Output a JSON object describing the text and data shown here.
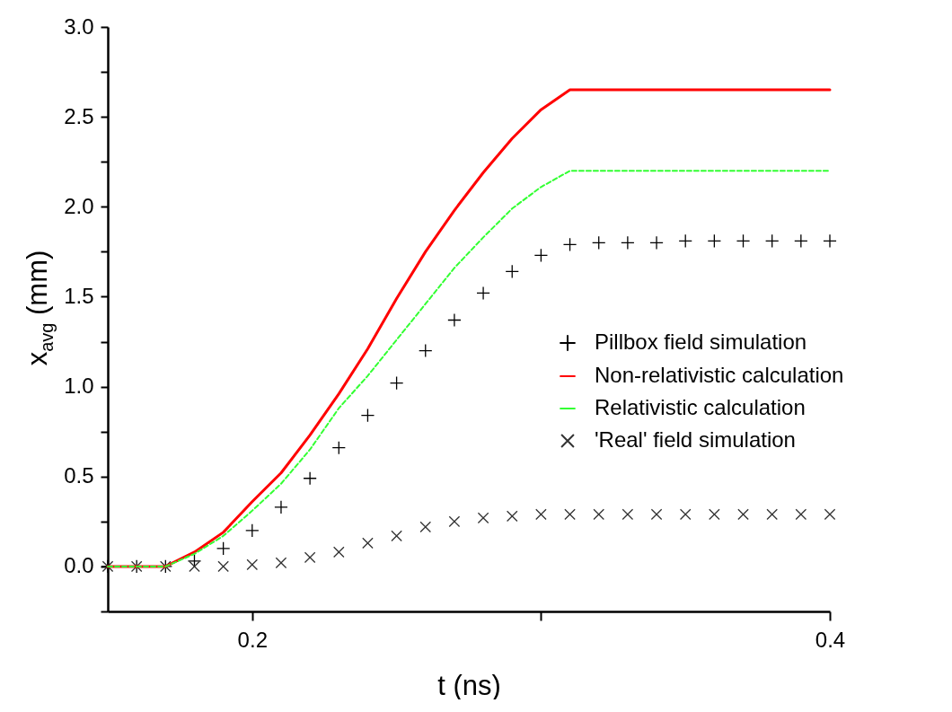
{
  "chart_data": {
    "type": "line",
    "xlabel": "t (ns)",
    "ylabel": "x$_{avg}$ (mm)",
    "x": [
      0.15,
      0.16,
      0.17,
      0.18,
      0.19,
      0.2,
      0.21,
      0.22,
      0.23,
      0.24,
      0.25,
      0.26,
      0.27,
      0.28,
      0.29,
      0.3,
      0.31,
      0.32,
      0.33,
      0.34,
      0.35,
      0.36,
      0.37,
      0.38,
      0.39,
      0.4
    ],
    "series": [
      {
        "name": "Pillbox field simulation",
        "type": "scatter",
        "marker": "cross",
        "color": "#000000",
        "values": [
          0,
          0,
          0,
          0.03,
          0.1,
          0.2,
          0.33,
          0.49,
          0.66,
          0.84,
          1.02,
          1.2,
          1.37,
          1.52,
          1.64,
          1.73,
          1.79,
          1.8,
          1.8,
          1.8,
          1.81,
          1.81,
          1.81,
          1.81,
          1.81,
          1.81
        ]
      },
      {
        "name": "Non-relativistic calculation",
        "type": "line",
        "line_style": "solid",
        "color": "#ff0000",
        "values": [
          0,
          0,
          0,
          0.08,
          0.19,
          0.36,
          0.52,
          0.73,
          0.96,
          1.21,
          1.49,
          1.75,
          1.98,
          2.19,
          2.38,
          2.54,
          2.65,
          2.65,
          2.65,
          2.65,
          2.65,
          2.65,
          2.65,
          2.65,
          2.65,
          2.65
        ]
      },
      {
        "name": "Relativistic calculation",
        "type": "line",
        "line_style": "dashed",
        "color": "#33ff33",
        "values": [
          0,
          0,
          0,
          0.07,
          0.17,
          0.31,
          0.46,
          0.65,
          0.88,
          1.06,
          1.26,
          1.46,
          1.66,
          1.83,
          1.99,
          2.11,
          2.2,
          2.2,
          2.2,
          2.2,
          2.2,
          2.2,
          2.2,
          2.2,
          2.2,
          2.2
        ]
      },
      {
        "name": "'Real' field simulation",
        "type": "scatter",
        "marker": "x",
        "color": "#333333",
        "values": [
          0,
          0,
          0,
          0,
          0,
          0.01,
          0.02,
          0.05,
          0.08,
          0.13,
          0.17,
          0.22,
          0.25,
          0.27,
          0.28,
          0.29,
          0.29,
          0.29,
          0.29,
          0.29,
          0.29,
          0.29,
          0.29,
          0.29,
          0.29,
          0.29
        ]
      }
    ],
    "xlim": [
      0.15,
      0.4
    ],
    "xticks": [
      0.2,
      {
        "value": 0.3,
        "label": null
      },
      0.4
    ],
    "ylim": [
      -0.25,
      3.0
    ],
    "yticks": [
      {
        "value": -0.25,
        "label": null
      },
      {
        "value": 0,
        "label": "0.0"
      },
      {
        "value": 0.25,
        "label": null
      },
      {
        "value": 0.5,
        "label": "0.5"
      },
      {
        "value": 0.75,
        "label": null
      },
      {
        "value": 1,
        "label": "1.0"
      },
      {
        "value": 1.25,
        "label": null
      },
      {
        "value": 1.5,
        "label": "1.5"
      },
      {
        "value": 1.75,
        "label": null
      },
      {
        "value": 2,
        "label": "2.0"
      },
      {
        "value": 2.25,
        "label": null
      },
      {
        "value": 2.5,
        "label": "2.5"
      },
      {
        "value": 2.75,
        "label": null
      },
      {
        "value": 3,
        "label": "3.0"
      }
    ],
    "grid": false,
    "legend": "right"
  }
}
